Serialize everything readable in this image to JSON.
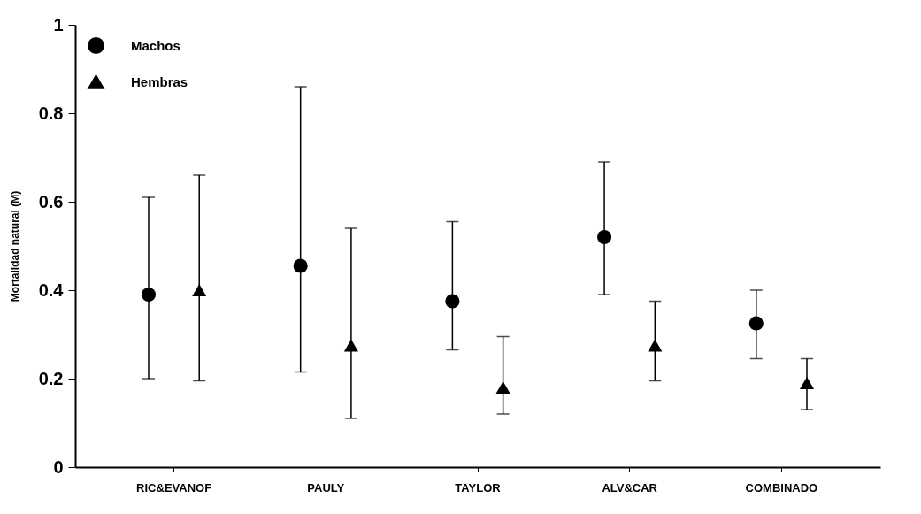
{
  "chart_data": {
    "type": "scatter",
    "ylabel": "Mortalidad natural (M)",
    "categories": [
      "RIC&EVANOF",
      "PAULY",
      "TAYLOR",
      "ALV&CAR",
      "COMBINADO"
    ],
    "series": [
      {
        "name": "Machos",
        "color": "#000000",
        "marker": "circle",
        "values": [
          0.39,
          0.455,
          0.375,
          0.52,
          0.325
        ],
        "errors": [
          [
            0.2,
            0.61
          ],
          [
            0.215,
            0.86
          ],
          [
            0.265,
            0.555
          ],
          [
            0.39,
            0.69
          ],
          [
            0.245,
            0.4
          ]
        ]
      },
      {
        "name": "Hembras",
        "color": "#000000",
        "marker": "triangle",
        "values": [
          0.4,
          0.275,
          0.18,
          0.275,
          0.19
        ],
        "errors": [
          [
            0.195,
            0.66
          ],
          [
            0.11,
            0.54
          ],
          [
            0.12,
            0.295
          ],
          [
            0.195,
            0.375
          ],
          [
            0.13,
            0.245
          ]
        ]
      }
    ],
    "ylim": [
      0,
      1
    ],
    "yticks": [
      0,
      0.2,
      0.4,
      0.6,
      0.8,
      1
    ],
    "grid": false,
    "legend": "top left"
  }
}
